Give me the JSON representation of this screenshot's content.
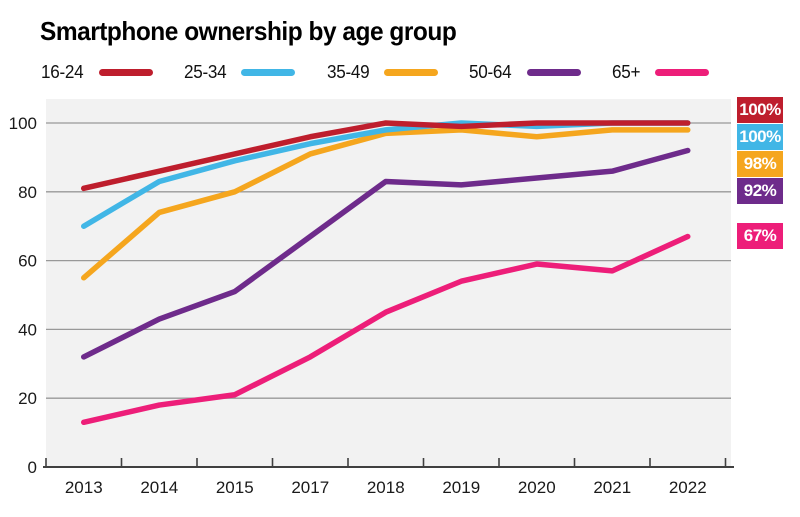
{
  "title": "Smartphone ownership by age group",
  "chart_data": {
    "type": "line",
    "title": "Smartphone ownership by age group",
    "categories": [
      "2013",
      "2014",
      "2015",
      "2017",
      "2018",
      "2019",
      "2020",
      "2021",
      "2022"
    ],
    "series": [
      {
        "name": "16-24",
        "color": "#be1e2d",
        "end_label": "100%",
        "values": [
          81,
          86,
          91,
          96,
          100,
          99,
          100,
          100,
          100
        ]
      },
      {
        "name": "25-34",
        "color": "#41b6e6",
        "end_label": "100%",
        "values": [
          70,
          83,
          89,
          94,
          98,
          100,
          99,
          100,
          100
        ]
      },
      {
        "name": "35-49",
        "color": "#f5a61e",
        "end_label": "98%",
        "values": [
          55,
          74,
          80,
          91,
          97,
          98,
          96,
          98,
          98
        ]
      },
      {
        "name": "50-64",
        "color": "#6e2b8b",
        "end_label": "92%",
        "values": [
          32,
          43,
          51,
          67,
          83,
          82,
          84,
          86,
          92
        ]
      },
      {
        "name": "65+",
        "color": "#ed1e79",
        "end_label": "67%",
        "values": [
          13,
          18,
          21,
          32,
          45,
          54,
          59,
          57,
          67
        ]
      }
    ],
    "ylim": [
      0,
      100
    ],
    "yticks": [
      0,
      20,
      40,
      60,
      80,
      100
    ],
    "grid": "horizontal",
    "legend_position": "top",
    "plot_background": "#f2f2f2",
    "gridline_color": "#999999",
    "axis_color": "#404040",
    "tick_label_color": "#1a1a1a"
  }
}
